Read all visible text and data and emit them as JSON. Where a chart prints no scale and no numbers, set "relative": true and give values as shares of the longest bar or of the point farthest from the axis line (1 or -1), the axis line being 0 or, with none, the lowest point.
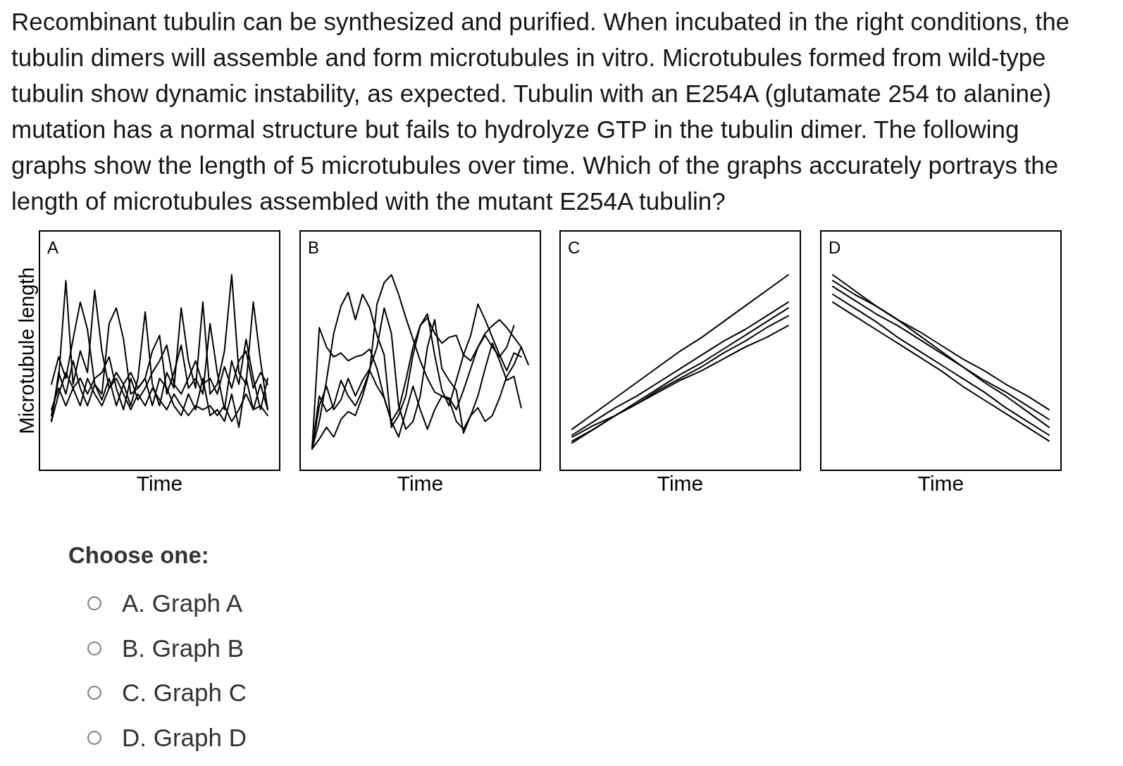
{
  "chart_data": [
    {
      "type": "other",
      "title": "Recombinant tubulin can be synthesized and purified. When incubated in the right conditions, the tubulin dimers will assemble and form microtubules in vitro. Microtubules formed from wild-type tubulin show dynamic instability, as expected. Tubulin with an E254A (glutamate 254 to alanine) mutation has a normal structure but fails to hydrolyze GTP in the tubulin dimer. The following graphs show the length of 5 microtubules over time. Which of the graphs accurately portrays the length of microtubules assembled with the mutant E254A tubulin?"
    },
    {
      "type": "line",
      "title": "A",
      "xlabel": "Time",
      "ylabel": "Microtubule length",
      "relative": true,
      "marker": "none",
      "line_style": "solid",
      "categories": [
        null,
        null,
        null,
        null,
        null,
        null,
        null,
        null,
        null,
        null,
        null,
        null,
        null,
        null,
        null,
        null,
        null,
        null,
        null,
        null,
        null,
        null,
        null,
        null,
        null,
        null,
        null,
        null,
        null,
        null,
        null
      ],
      "series": [
        {
          "color": "#000000",
          "values": [
            0.28,
            0.47,
            0.97,
            0.44,
            0.61,
            0.5,
            0.92,
            0.61,
            0.42,
            0.5,
            0.44,
            0.33,
            0.47,
            0.81,
            0.44,
            0.33,
            0.5,
            0.42,
            0.83,
            0.56,
            0.42,
            0.86,
            0.39,
            0.44,
            0.61,
            1.0,
            0.5,
            0.44,
            0.86,
            0.56,
            0.31
          ]
        },
        {
          "color": "#000000",
          "values": [
            0.44,
            0.58,
            0.47,
            0.67,
            0.86,
            0.72,
            0.44,
            0.39,
            0.75,
            0.83,
            0.67,
            0.39,
            0.42,
            0.47,
            0.61,
            0.69,
            0.39,
            0.5,
            0.64,
            0.42,
            0.47,
            0.39,
            0.75,
            0.5,
            0.31,
            0.56,
            0.44,
            0.67,
            0.47,
            0.31,
            0.47
          ]
        },
        {
          "color": "#000000",
          "values": [
            0.25,
            0.39,
            0.5,
            0.42,
            0.47,
            0.39,
            0.47,
            0.5,
            0.58,
            0.42,
            0.31,
            0.47,
            0.36,
            0.42,
            0.5,
            0.56,
            0.64,
            0.44,
            0.39,
            0.47,
            0.56,
            0.44,
            0.47,
            0.39,
            0.53,
            0.42,
            0.56,
            0.61,
            0.42,
            0.5,
            0.44
          ]
        },
        {
          "color": "#000000",
          "values": [
            0.31,
            0.42,
            0.33,
            0.42,
            0.33,
            0.47,
            0.39,
            0.33,
            0.42,
            0.47,
            0.39,
            0.31,
            0.39,
            0.33,
            0.42,
            0.36,
            0.31,
            0.39,
            0.33,
            0.28,
            0.33,
            0.31,
            0.33,
            0.28,
            0.33,
            0.25,
            0.31,
            0.39,
            0.31,
            0.33,
            0.28
          ]
        },
        {
          "color": "#000000",
          "values": [
            0.25,
            0.5,
            0.39,
            0.56,
            0.42,
            0.33,
            0.44,
            0.36,
            0.47,
            0.33,
            0.44,
            0.5,
            0.42,
            0.47,
            0.33,
            0.47,
            0.42,
            0.33,
            0.28,
            0.39,
            0.31,
            0.47,
            0.28,
            0.31,
            0.25,
            0.39,
            0.22,
            0.47,
            0.31,
            0.44,
            0.31
          ]
        }
      ]
    },
    {
      "type": "line",
      "title": "B",
      "xlabel": "Time",
      "relative": true,
      "marker": "none",
      "line_style": "solid",
      "categories": [
        null,
        null,
        null,
        null,
        null,
        null,
        null,
        null,
        null,
        null,
        null,
        null,
        null,
        null,
        null,
        null,
        null,
        null,
        null,
        null,
        null,
        null,
        null,
        null,
        null,
        null,
        null,
        null,
        null,
        null,
        null
      ],
      "series": [
        {
          "color": "#000000",
          "values": [
            0.11,
            0.73,
            0.63,
            0.58,
            0.6,
            0.56,
            0.58,
            0.59,
            0.62,
            0.52,
            0.37,
            0.25,
            0.31,
            0.46,
            0.63,
            0.74,
            0.78,
            0.7,
            0.65,
            0.68,
            0.69,
            0.59,
            0.56,
            0.63,
            0.7,
            0.74,
            0.77,
            0.73,
            0.68,
            0.63,
            0.54
          ]
        },
        {
          "color": "#000000",
          "values": [
            0.11,
            0.38,
            0.3,
            0.33,
            0.46,
            0.38,
            0.33,
            0.41,
            0.51,
            0.85,
            0.96,
            1.0,
            0.9,
            0.78,
            0.67,
            0.56,
            0.47,
            0.4,
            0.38,
            0.37,
            0.31,
            0.41,
            0.52,
            0.63,
            0.69,
            0.63,
            0.58,
            0.63,
            0.74,
            null,
            null
          ]
        },
        {
          "color": "#000000",
          "values": [
            0.11,
            0.25,
            0.46,
            0.7,
            0.84,
            0.91,
            0.77,
            0.9,
            0.83,
            0.69,
            0.59,
            0.22,
            0.28,
            0.38,
            0.59,
            0.74,
            0.8,
            0.59,
            0.41,
            0.33,
            0.46,
            0.59,
            0.69,
            0.85,
            0.77,
            0.68,
            0.59,
            0.51,
            0.6,
            0.58,
            null
          ]
        },
        {
          "color": "#000000",
          "values": [
            0.11,
            0.33,
            0.43,
            0.31,
            0.36,
            0.47,
            0.38,
            0.46,
            0.52,
            0.63,
            0.83,
            0.7,
            0.33,
            0.21,
            0.25,
            0.38,
            0.63,
            0.77,
            0.52,
            0.46,
            0.41,
            0.19,
            0.28,
            0.38,
            0.52,
            0.65,
            0.56,
            0.46,
            0.48,
            0.32,
            null
          ]
        },
        {
          "color": "#000000",
          "values": [
            0.11,
            0.16,
            0.22,
            0.17,
            0.26,
            0.3,
            0.28,
            0.38,
            0.51,
            0.43,
            0.37,
            0.25,
            0.17,
            0.3,
            0.43,
            0.31,
            0.21,
            0.31,
            0.38,
            0.36,
            0.25,
            0.21,
            0.28,
            0.32,
            0.25,
            0.28,
            0.37,
            0.48,
            0.54,
            0.63,
            null
          ]
        }
      ]
    },
    {
      "type": "line",
      "title": "C",
      "xlabel": "Time",
      "relative": true,
      "marker": "none",
      "line_style": "solid",
      "categories": [
        null,
        null,
        null,
        null,
        null,
        null,
        null,
        null,
        null,
        null,
        null
      ],
      "series": [
        {
          "color": "#000000",
          "values": [
            0.21,
            0.29,
            0.37,
            0.45,
            0.53,
            0.61,
            0.68,
            0.76,
            0.84,
            0.92,
            1.0
          ]
        },
        {
          "color": "#000000",
          "values": [
            0.18,
            0.25,
            0.32,
            0.38,
            0.45,
            0.52,
            0.59,
            0.66,
            0.72,
            0.79,
            0.86
          ]
        },
        {
          "color": "#000000",
          "values": [
            0.17,
            0.23,
            0.28,
            0.34,
            0.4,
            0.46,
            0.51,
            0.57,
            0.63,
            0.68,
            0.74
          ]
        },
        {
          "color": "#000000",
          "values": [
            0.15,
            0.21,
            0.28,
            0.34,
            0.41,
            0.47,
            0.53,
            0.6,
            0.66,
            0.73,
            0.79
          ]
        },
        {
          "color": "#000000",
          "values": [
            0.14,
            0.21,
            0.28,
            0.35,
            0.42,
            0.49,
            0.55,
            0.62,
            0.69,
            0.76,
            0.83
          ]
        }
      ]
    },
    {
      "type": "line",
      "title": "D",
      "xlabel": "Time",
      "relative": true,
      "marker": "none",
      "line_style": "solid",
      "categories": [
        null,
        null,
        null,
        null,
        null,
        null,
        null,
        null,
        null,
        null,
        null
      ],
      "series": [
        {
          "color": "#000000",
          "values": [
            1.0,
            0.92,
            0.84,
            0.77,
            0.69,
            0.61,
            0.53,
            0.45,
            0.38,
            0.3,
            0.22
          ]
        },
        {
          "color": "#000000",
          "values": [
            0.97,
            0.9,
            0.84,
            0.77,
            0.71,
            0.64,
            0.57,
            0.51,
            0.44,
            0.38,
            0.31
          ]
        },
        {
          "color": "#000000",
          "values": [
            0.94,
            0.87,
            0.8,
            0.74,
            0.67,
            0.6,
            0.53,
            0.46,
            0.4,
            0.33,
            0.26
          ]
        },
        {
          "color": "#000000",
          "values": [
            0.9,
            0.83,
            0.76,
            0.68,
            0.61,
            0.54,
            0.47,
            0.4,
            0.32,
            0.25,
            0.18
          ]
        },
        {
          "color": "#000000",
          "values": [
            0.86,
            0.79,
            0.72,
            0.65,
            0.58,
            0.51,
            0.43,
            0.36,
            0.29,
            0.22,
            0.15
          ]
        }
      ]
    },
    {
      "type": "other",
      "title": "Choose one:",
      "annotations": [
        "A. Graph A",
        "B. Graph B",
        "C. Graph C",
        "D. Graph D"
      ]
    }
  ]
}
